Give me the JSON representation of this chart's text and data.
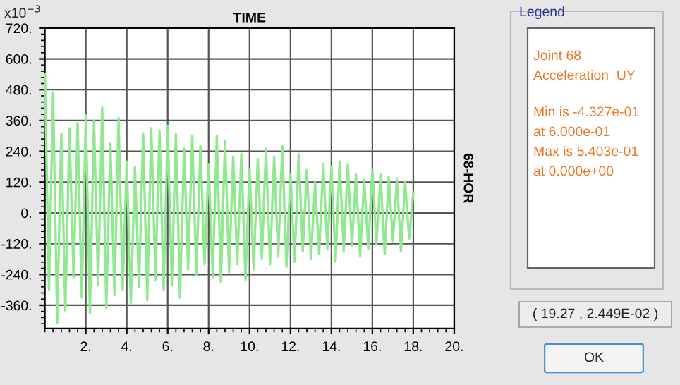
{
  "chart_data": {
    "type": "line",
    "title": "TIME",
    "ylabel": "68-HOR",
    "x": [
      0,
      0.2,
      0.4,
      0.6,
      0.8,
      1.0,
      1.2,
      1.4,
      1.6,
      1.8,
      2.0,
      2.2,
      2.4,
      2.6,
      2.8,
      3.0,
      3.2,
      3.4,
      3.6,
      3.8,
      4.0,
      4.2,
      4.4,
      4.6,
      4.8,
      5.0,
      5.2,
      5.4,
      5.6,
      5.8,
      6.0,
      6.2,
      6.4,
      6.6,
      6.8,
      7.0,
      7.2,
      7.4,
      7.6,
      7.8,
      8.0,
      8.2,
      8.4,
      8.6,
      8.8,
      9.0,
      9.2,
      9.4,
      9.6,
      9.8,
      10.0,
      10.2,
      10.4,
      10.6,
      10.8,
      11.0,
      11.2,
      11.4,
      11.6,
      11.8,
      12.0,
      12.2,
      12.4,
      12.6,
      12.8,
      13.0,
      13.2,
      13.4,
      13.6,
      13.8,
      14.0,
      14.2,
      14.4,
      14.6,
      14.8,
      15.0,
      15.2,
      15.4,
      15.6,
      15.8,
      16.0,
      16.2,
      16.4,
      16.6,
      16.8,
      17.0,
      17.2,
      17.4,
      17.6,
      17.8,
      18.0
    ],
    "series": [
      {
        "color": "#90e890",
        "values": [
          540,
          -300,
          470,
          -430,
          310,
          -380,
          330,
          -250,
          350,
          -330,
          380,
          -390,
          360,
          -280,
          410,
          -370,
          270,
          -320,
          370,
          -300,
          200,
          -350,
          180,
          -290,
          310,
          -340,
          330,
          -260,
          320,
          -300,
          340,
          -280,
          310,
          -330,
          250,
          -220,
          300,
          -240,
          260,
          -200,
          190,
          -250,
          300,
          -270,
          280,
          -230,
          220,
          -200,
          230,
          -260,
          170,
          -220,
          210,
          -180,
          250,
          -200,
          220,
          -170,
          260,
          -210,
          150,
          -190,
          230,
          -150,
          170,
          -180,
          120,
          -160,
          190,
          -140,
          180,
          -190,
          200,
          -150,
          190,
          -130,
          150,
          -170,
          130,
          -140,
          170,
          -120,
          150,
          -160,
          140,
          -110,
          130,
          -150,
          120,
          -100,
          80
        ]
      }
    ],
    "xlim": [
      0,
      20
    ],
    "xticks": [
      {
        "value": 2,
        "label": "2."
      },
      {
        "value": 4,
        "label": "4."
      },
      {
        "value": 6,
        "label": "6."
      },
      {
        "value": 8,
        "label": "8."
      },
      {
        "value": 10,
        "label": "10."
      },
      {
        "value": 12,
        "label": "12."
      },
      {
        "value": 14,
        "label": "14."
      },
      {
        "value": 16,
        "label": "16."
      },
      {
        "value": 18,
        "label": "18."
      },
      {
        "value": 20,
        "label": "20."
      }
    ],
    "ylim": [
      -450,
      720
    ],
    "yticks": [
      {
        "value": -360,
        "label": "-360."
      },
      {
        "value": -240,
        "label": "-240."
      },
      {
        "value": -120,
        "label": "-120."
      },
      {
        "value": 0,
        "label": "0."
      },
      {
        "value": 120,
        "label": "120."
      },
      {
        "value": 240,
        "label": "240."
      },
      {
        "value": 360,
        "label": "360."
      },
      {
        "value": 480,
        "label": "480."
      },
      {
        "value": 600,
        "label": "600."
      },
      {
        "value": 720,
        "label": "720."
      }
    ],
    "grid": true,
    "legend": false,
    "annotations": [
      "x10$^{−3}$",
      "Legend",
      "Joint 68",
      "Acceleration  UY",
      "Min is -4.327e-01",
      "at 6.000e-01",
      "Max is 5.403e-01",
      "at 0.000e+00",
      "( 19.27 , 2.449E-02 )",
      "OK"
    ]
  }
}
